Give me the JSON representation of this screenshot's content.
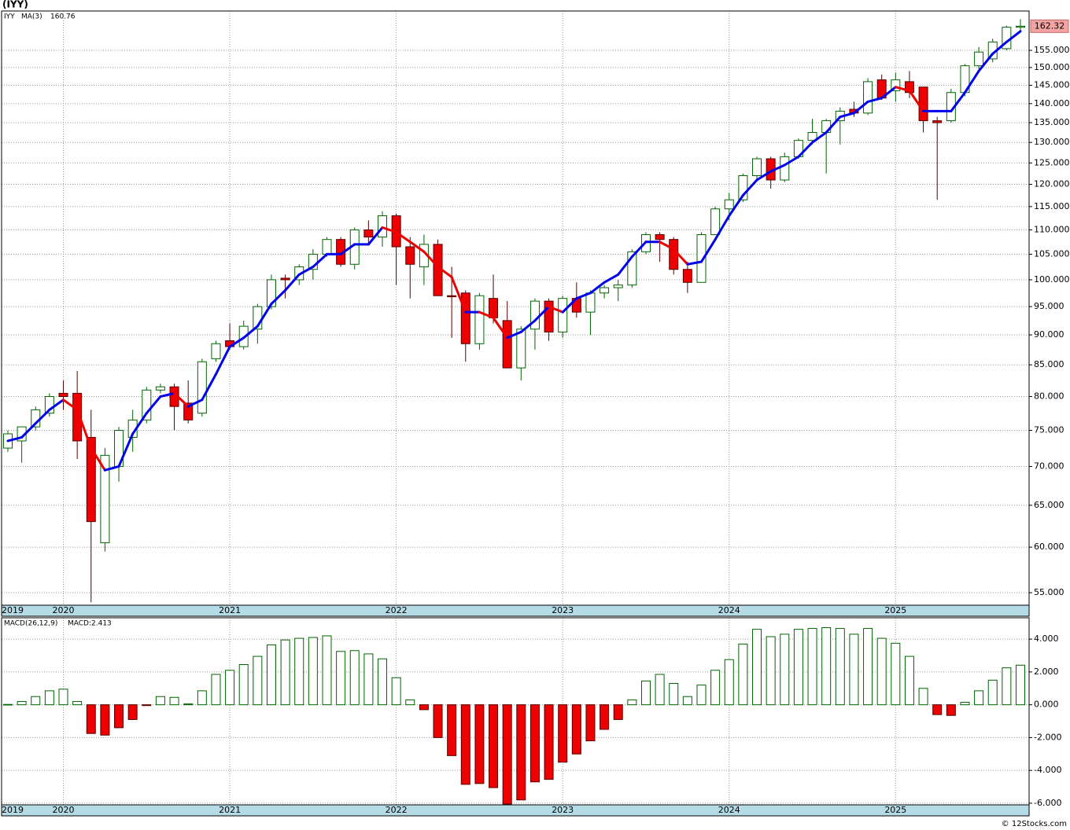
{
  "title": "(IYY)",
  "watermark": "© 12Stocks.com",
  "chart_data": [
    {
      "type": "candlestick",
      "name": "IYY",
      "log_scale": true,
      "grid": true,
      "categories": [
        "2019",
        null,
        null,
        null,
        "2020",
        null,
        null,
        null,
        null,
        null,
        null,
        null,
        null,
        null,
        null,
        null,
        "2021",
        null,
        null,
        null,
        null,
        null,
        null,
        null,
        null,
        null,
        null,
        null,
        "2022",
        null,
        null,
        null,
        null,
        null,
        null,
        null,
        null,
        null,
        null,
        null,
        "2023",
        null,
        null,
        null,
        null,
        null,
        null,
        null,
        null,
        null,
        null,
        null,
        "2024",
        null,
        null,
        null,
        null,
        null,
        null,
        null,
        null,
        null,
        null,
        null,
        "2025",
        null,
        null,
        null,
        null,
        null,
        null,
        null,
        null,
        null
      ],
      "open": [
        72.5,
        73.5,
        75.5,
        77.5,
        80.5,
        80.5,
        74,
        60.5,
        70,
        74,
        76.5,
        81,
        81.5,
        79,
        77.5,
        86,
        89,
        88,
        91,
        95,
        100.3,
        100,
        102,
        105,
        108,
        103,
        110,
        108.5,
        113,
        106.5,
        102.5,
        107,
        97,
        97.5,
        88.5,
        96.5,
        92.5,
        84.5,
        91,
        96,
        90.5,
        96.5,
        94,
        97.5,
        98.5,
        99,
        105.5,
        109,
        108,
        102,
        99.5,
        109,
        114.5,
        116.5,
        122,
        126,
        121,
        126.5,
        130.5,
        132.5,
        135.5,
        138.5,
        137.5,
        146.5,
        143.5,
        146,
        144.5,
        135.5,
        135.5,
        143,
        150.5,
        152.5,
        155.5,
        162
      ],
      "high": [
        75,
        75.5,
        78.5,
        80.5,
        82.5,
        84,
        78,
        72.5,
        75.5,
        78,
        81.5,
        82,
        82,
        82.5,
        86,
        89,
        92,
        92.5,
        95.5,
        101,
        101,
        103,
        106,
        108.5,
        108.5,
        110.5,
        112,
        114,
        113.5,
        108.5,
        109,
        108,
        102.5,
        98,
        97.5,
        101,
        96,
        91.5,
        96.5,
        96.5,
        97,
        99.5,
        98,
        99,
        100,
        106,
        109.5,
        109.5,
        108.5,
        103.5,
        109.5,
        115,
        118,
        122.5,
        126.5,
        126.5,
        127.5,
        131,
        136,
        136,
        139,
        140.5,
        147,
        148,
        148.5,
        149,
        144.5,
        136.5,
        144,
        151,
        156,
        158.5,
        162.5,
        164.5
      ],
      "low": [
        72,
        70.5,
        75,
        77,
        78,
        71,
        54,
        59.5,
        68,
        72,
        76,
        80.5,
        75,
        76,
        77,
        85.5,
        87.5,
        87.5,
        88.5,
        94.5,
        96.5,
        99,
        100,
        104.5,
        102.5,
        102,
        107,
        106.5,
        99,
        96.5,
        99,
        97,
        89.5,
        85.5,
        87.5,
        92,
        84.5,
        82.5,
        87.5,
        89,
        89.5,
        93,
        90,
        96.5,
        96,
        98.5,
        105,
        103.5,
        101,
        97.5,
        99.5,
        109,
        112,
        116,
        121,
        119,
        120.5,
        126,
        129.5,
        122.5,
        129.5,
        136.5,
        137,
        141,
        140.5,
        141.5,
        132.5,
        116.5,
        135,
        142,
        149.5,
        151.5,
        155,
        161
      ],
      "close": [
        74.5,
        75.5,
        78,
        80,
        80,
        73.5,
        63,
        71.5,
        75,
        76.5,
        81,
        81.5,
        78.5,
        76.5,
        85.5,
        88.5,
        88,
        91.5,
        95,
        100,
        100,
        102.5,
        105,
        108,
        103,
        110,
        108.5,
        113,
        106.5,
        103,
        107,
        97,
        96.8,
        88.5,
        97,
        93,
        84.5,
        91,
        96,
        90.5,
        96.5,
        94,
        97.5,
        98.5,
        99,
        105.5,
        109,
        108,
        102,
        99.5,
        109,
        114.5,
        116.5,
        122,
        126,
        121,
        126.5,
        130.5,
        132.5,
        135.5,
        138,
        137.5,
        146,
        141.5,
        146.5,
        143,
        135.5,
        135,
        143,
        150.5,
        154.5,
        157.5,
        162,
        162.32
      ],
      "up_color": "#ffffff",
      "up_edge": "#006400",
      "down_color": "#ee0000",
      "down_edge": "#550000",
      "last_color": "#f4a3a3",
      "ma": {
        "name": "MA(3)",
        "up_color": "#0000ee",
        "down_color": "#ee0000",
        "values": [
          73.5,
          74,
          76,
          78,
          79.5,
          78,
          72.5,
          69.5,
          70,
          74.5,
          77.5,
          80,
          80.5,
          78.5,
          79.5,
          83.5,
          88,
          89.5,
          91.5,
          95.5,
          98,
          101,
          102.5,
          105,
          105,
          107,
          107,
          110.5,
          109.5,
          107.5,
          105.5,
          102.5,
          100.5,
          94,
          94,
          93,
          89.5,
          90.5,
          92.5,
          95,
          94,
          96.5,
          97.5,
          99.5,
          101,
          104.5,
          107.5,
          107.5,
          106,
          103,
          103.5,
          108,
          113,
          117.5,
          121,
          123,
          124.5,
          126.5,
          130,
          132.5,
          136.5,
          137.5,
          140.5,
          141.5,
          144.5,
          143.5,
          138,
          138,
          138,
          143,
          149,
          154,
          157.5,
          160.76
        ]
      },
      "ylim": [
        53.7,
        167.1
      ],
      "yticks": [
        {
          "value": 55,
          "label": "55.000"
        },
        {
          "value": 60,
          "label": "60.000"
        },
        {
          "value": 65,
          "label": "65.000"
        },
        {
          "value": 70,
          "label": "70.000"
        },
        {
          "value": 75,
          "label": "75.000"
        },
        {
          "value": 80,
          "label": "80.000"
        },
        {
          "value": 85,
          "label": "85.000"
        },
        {
          "value": 90,
          "label": "90.000"
        },
        {
          "value": 95,
          "label": "95.000"
        },
        {
          "value": 100,
          "label": "100.000"
        },
        {
          "value": 105,
          "label": "105.000"
        },
        {
          "value": 110,
          "label": "110.000"
        },
        {
          "value": 115,
          "label": "115.000"
        },
        {
          "value": 120,
          "label": "120.000"
        },
        {
          "value": 125,
          "label": "125.000"
        },
        {
          "value": 130,
          "label": "130.000"
        },
        {
          "value": 135,
          "label": "135.000"
        },
        {
          "value": 140,
          "label": "140.000"
        },
        {
          "value": 145,
          "label": "145.000"
        },
        {
          "value": 150,
          "label": "150.000"
        },
        {
          "value": 155,
          "label": "155.000"
        }
      ]
    },
    {
      "type": "bar",
      "legend_title": "MACD(26,12,9)",
      "grid": true,
      "categories": [
        "2019",
        null,
        null,
        null,
        "2020",
        null,
        null,
        null,
        null,
        null,
        null,
        null,
        null,
        null,
        null,
        null,
        "2021",
        null,
        null,
        null,
        null,
        null,
        null,
        null,
        null,
        null,
        null,
        null,
        "2022",
        null,
        null,
        null,
        null,
        null,
        null,
        null,
        null,
        null,
        null,
        null,
        "2023",
        null,
        null,
        null,
        null,
        null,
        null,
        null,
        null,
        null,
        null,
        null,
        "2024",
        null,
        null,
        null,
        null,
        null,
        null,
        null,
        null,
        null,
        null,
        null,
        "2025",
        null,
        null,
        null,
        null,
        null,
        null,
        null,
        null,
        null
      ],
      "series": [
        {
          "name": "MACD:",
          "pos_color": "#ffffff",
          "pos_edge": "#006400",
          "neg_color": "#ee0000",
          "neg_edge": "#550000",
          "values": [
            0.02,
            0.2,
            0.5,
            0.85,
            0.95,
            0.2,
            -1.75,
            -1.85,
            -1.4,
            -0.9,
            -0.05,
            0.5,
            0.45,
            0.05,
            0.85,
            1.85,
            2.1,
            2.45,
            2.95,
            3.65,
            3.95,
            4.05,
            4.1,
            4.2,
            3.25,
            3.3,
            3.1,
            2.8,
            1.65,
            0.3,
            -0.3,
            -2.0,
            -3.1,
            -4.85,
            -4.8,
            -5.05,
            -6.05,
            -5.8,
            -4.7,
            -4.55,
            -3.5,
            -3.0,
            -2.2,
            -1.5,
            -0.9,
            0.3,
            1.45,
            1.85,
            1.3,
            0.5,
            1.2,
            2.1,
            2.75,
            3.7,
            4.6,
            4.15,
            4.3,
            4.6,
            4.65,
            4.7,
            4.65,
            4.3,
            4.65,
            4.05,
            3.75,
            2.95,
            1.0,
            -0.6,
            -0.65,
            0.15,
            0.85,
            1.5,
            2.25,
            2.413
          ]
        }
      ],
      "ylim": [
        -6.1,
        5.3
      ],
      "yticks": [
        {
          "value": 4,
          "label": "4.000"
        },
        {
          "value": 2,
          "label": "2.000"
        },
        {
          "value": 0,
          "label": "0.000"
        },
        {
          "value": -2,
          "label": "-2.000"
        },
        {
          "value": -4,
          "label": "-4.000"
        },
        {
          "value": -6,
          "label": "-6.000"
        }
      ]
    }
  ]
}
